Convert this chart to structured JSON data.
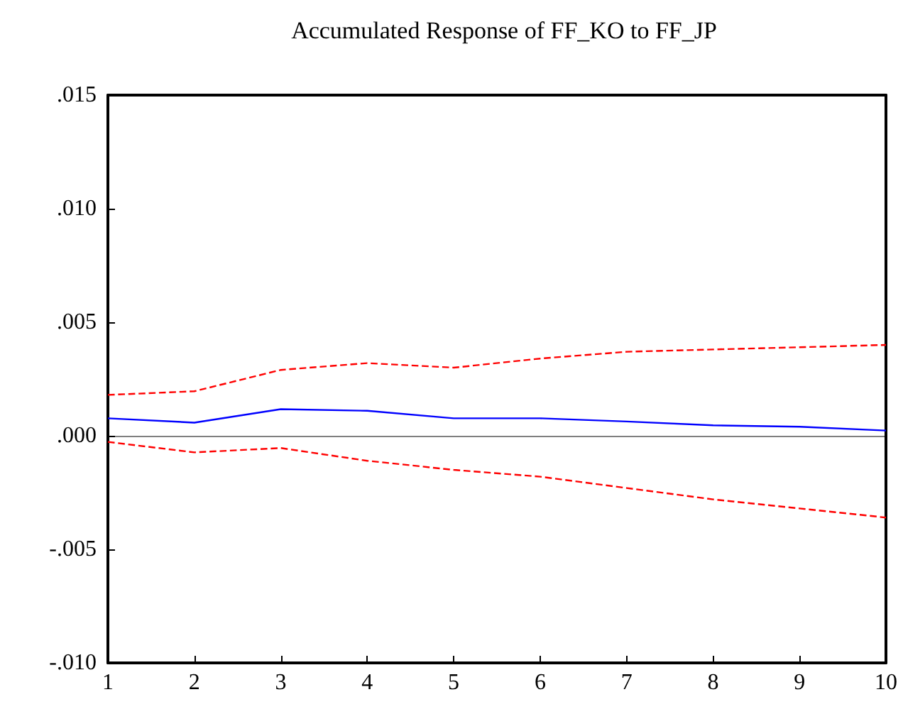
{
  "chart_data": {
    "type": "line",
    "title": "Accumulated Response of FF_KO to FF_JP",
    "x": [
      1,
      2,
      3,
      4,
      5,
      6,
      7,
      8,
      9,
      10
    ],
    "series": [
      {
        "color": "#0000ff",
        "line_style": "solid",
        "values": [
          0.00077,
          0.00058,
          0.00117,
          0.0011,
          0.00077,
          0.00077,
          0.00063,
          0.00046,
          0.0004,
          0.00023
        ]
      },
      {
        "color": "#ff0000",
        "line_style": "dashed",
        "values": [
          0.0018,
          0.00196,
          0.0029,
          0.0032,
          0.003,
          0.0034,
          0.0037,
          0.0038,
          0.0039,
          0.004
        ]
      },
      {
        "color": "#ff0000",
        "line_style": "dashed",
        "values": [
          -0.00027,
          -0.00073,
          -0.00054,
          -0.0011,
          -0.0015,
          -0.0018,
          -0.0023,
          -0.0028,
          -0.0032,
          -0.0036
        ]
      }
    ],
    "xlim": [
      1,
      10
    ],
    "xticks": [
      1,
      2,
      3,
      4,
      5,
      6,
      7,
      8,
      9,
      10
    ],
    "ylim": [
      -0.01,
      0.015
    ],
    "yticks": [
      {
        "value": -0.01,
        "label": "-.010"
      },
      {
        "value": -0.005,
        "label": "-.005"
      },
      {
        "value": 0,
        "label": ".000"
      },
      {
        "value": 0.005,
        "label": ".005"
      },
      {
        "value": 0.01,
        "label": ".010"
      },
      {
        "value": 0.015,
        "label": ".015"
      }
    ],
    "ref_lines": [
      {
        "axis": "y",
        "value": 0,
        "color": "#000000"
      }
    ],
    "grid": false,
    "marker": "none"
  }
}
